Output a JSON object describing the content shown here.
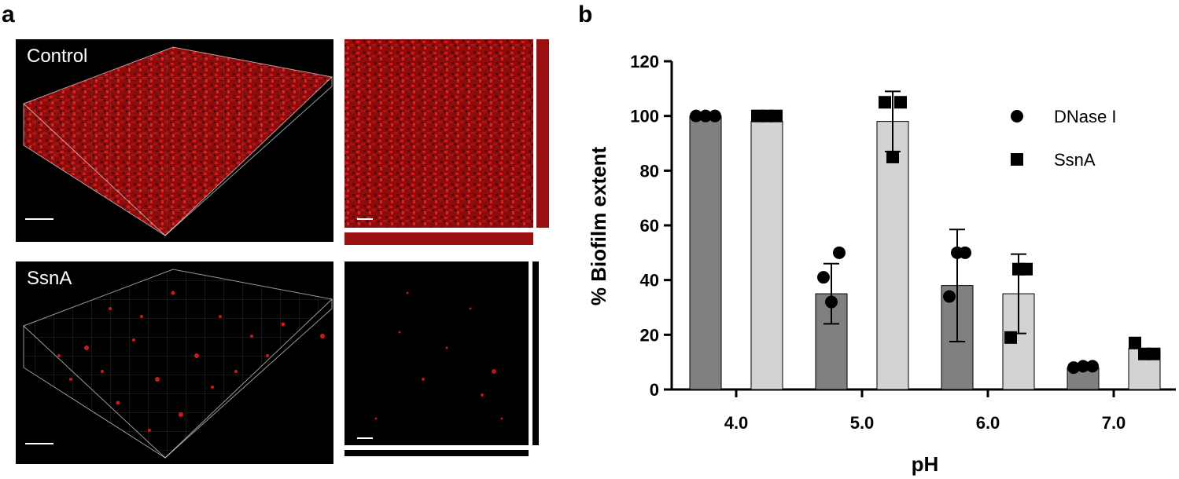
{
  "figure": {
    "panel_a_label": "a",
    "panel_b_label": "b"
  },
  "panel_a": {
    "top_label": "Control",
    "bottom_label": "SsnA",
    "colors": {
      "stain": "#c81414",
      "background": "#000000"
    }
  },
  "chart_data": {
    "type": "bar",
    "categories": [
      "4.0",
      "5.0",
      "6.0",
      "7.0"
    ],
    "xlabel": "pH",
    "ylabel": "% Biofilm extent",
    "ylim": [
      0,
      120
    ],
    "yticks": [
      0,
      20,
      40,
      60,
      80,
      100,
      120
    ],
    "grid": false,
    "legend_position": "top-right",
    "series": [
      {
        "name": "DNase I",
        "marker": "circle",
        "bar_color": "#808080",
        "values": [
          100,
          35,
          38,
          8
        ],
        "error": [
          0,
          11,
          20.5,
          0
        ],
        "points": [
          [
            100,
            100,
            100
          ],
          [
            41,
            32,
            50
          ],
          [
            34,
            50,
            50
          ],
          [
            8,
            8.5,
            8.5
          ]
        ]
      },
      {
        "name": "SsnA",
        "marker": "square",
        "bar_color": "#d3d3d3",
        "values": [
          98,
          98,
          35,
          15
        ],
        "error": [
          0,
          11,
          14.5,
          0
        ],
        "points": [
          [
            100,
            100,
            100
          ],
          [
            105,
            85,
            105
          ],
          [
            19,
            44,
            44
          ],
          [
            17,
            13,
            13
          ]
        ]
      }
    ]
  }
}
